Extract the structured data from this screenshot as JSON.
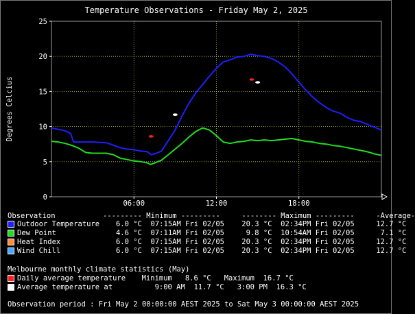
{
  "chart_data": {
    "type": "line",
    "title": "Temperature Observations - Friday May 2, 2025",
    "ylabel": "Degrees Celcius",
    "ylim": [
      0,
      25
    ],
    "yticks": [
      0,
      5,
      10,
      15,
      20,
      25
    ],
    "xlim_hours": [
      0,
      24
    ],
    "xticks": [
      {
        "hour": 6,
        "label": "06:00"
      },
      {
        "hour": 12,
        "label": "12:00"
      },
      {
        "hour": 18,
        "label": "18:00"
      }
    ],
    "grid": true,
    "series": [
      {
        "name": "Outdoor Temperature",
        "color": "#1f1fff",
        "points": [
          [
            0,
            9.8
          ],
          [
            0.5,
            9.6
          ],
          [
            1,
            9.4
          ],
          [
            1.4,
            9.0
          ],
          [
            1.6,
            7.8
          ],
          [
            2,
            7.8
          ],
          [
            3,
            7.8
          ],
          [
            4,
            7.7
          ],
          [
            5,
            7.0
          ],
          [
            5.5,
            6.8
          ],
          [
            6,
            6.7
          ],
          [
            6.5,
            6.5
          ],
          [
            7,
            6.4
          ],
          [
            7.25,
            6.0
          ],
          [
            7.5,
            6.1
          ],
          [
            8,
            6.5
          ],
          [
            8.5,
            8.0
          ],
          [
            9,
            9.5
          ],
          [
            9.5,
            11.5
          ],
          [
            10,
            13.3
          ],
          [
            10.5,
            14.8
          ],
          [
            11,
            16.0
          ],
          [
            11.5,
            17.2
          ],
          [
            12,
            18.3
          ],
          [
            12.5,
            19.2
          ],
          [
            13,
            19.5
          ],
          [
            13.5,
            19.9
          ],
          [
            14,
            20.0
          ],
          [
            14.5,
            20.3
          ],
          [
            15,
            20.1
          ],
          [
            15.5,
            20.0
          ],
          [
            16,
            19.7
          ],
          [
            16.5,
            19.2
          ],
          [
            17,
            18.5
          ],
          [
            17.5,
            17.5
          ],
          [
            18,
            16.3
          ],
          [
            18.5,
            15.2
          ],
          [
            19,
            14.2
          ],
          [
            19.5,
            13.4
          ],
          [
            20,
            12.7
          ],
          [
            20.5,
            12.2
          ],
          [
            21,
            11.9
          ],
          [
            21.5,
            11.3
          ],
          [
            22,
            10.9
          ],
          [
            22.5,
            10.7
          ],
          [
            23,
            10.3
          ],
          [
            23.5,
            9.9
          ],
          [
            24,
            9.5
          ]
        ]
      },
      {
        "name": "Dew Point",
        "color": "#22dd22",
        "points": [
          [
            0,
            7.9
          ],
          [
            0.5,
            7.8
          ],
          [
            1,
            7.6
          ],
          [
            1.5,
            7.3
          ],
          [
            2,
            6.9
          ],
          [
            2.5,
            6.3
          ],
          [
            3,
            6.2
          ],
          [
            4,
            6.2
          ],
          [
            4.5,
            6.0
          ],
          [
            5,
            5.5
          ],
          [
            5.5,
            5.3
          ],
          [
            6,
            5.1
          ],
          [
            6.5,
            5.0
          ],
          [
            7,
            4.8
          ],
          [
            7.2,
            4.6
          ],
          [
            7.5,
            4.8
          ],
          [
            8,
            5.2
          ],
          [
            8.5,
            6.0
          ],
          [
            9,
            6.8
          ],
          [
            9.5,
            7.6
          ],
          [
            10,
            8.5
          ],
          [
            10.5,
            9.3
          ],
          [
            11,
            9.8
          ],
          [
            11.5,
            9.5
          ],
          [
            12,
            8.7
          ],
          [
            12.5,
            7.8
          ],
          [
            13,
            7.6
          ],
          [
            13.5,
            7.8
          ],
          [
            14,
            7.9
          ],
          [
            14.5,
            8.1
          ],
          [
            15,
            8.0
          ],
          [
            15.5,
            8.1
          ],
          [
            16,
            8.0
          ],
          [
            16.5,
            8.1
          ],
          [
            17,
            8.2
          ],
          [
            17.5,
            8.3
          ],
          [
            18,
            8.1
          ],
          [
            18.5,
            7.9
          ],
          [
            19,
            7.8
          ],
          [
            19.5,
            7.6
          ],
          [
            20,
            7.5
          ],
          [
            20.5,
            7.3
          ],
          [
            21,
            7.2
          ],
          [
            21.5,
            7.0
          ],
          [
            22,
            6.8
          ],
          [
            22.5,
            6.6
          ],
          [
            23,
            6.4
          ],
          [
            23.5,
            6.1
          ],
          [
            24,
            5.9
          ]
        ]
      }
    ],
    "markers": [
      {
        "name": "Daily average temperature min",
        "hour": 7.25,
        "value": 8.6,
        "color": "#ff2020"
      },
      {
        "name": "Daily average temperature max",
        "hour": 14.57,
        "value": 16.7,
        "color": "#ff2020"
      },
      {
        "name": "Average temperature at 9am",
        "hour": 9.0,
        "value": 11.7,
        "color": "#ffffff"
      },
      {
        "name": "Average temperature at 3pm",
        "hour": 15.0,
        "value": 16.3,
        "color": "#ffffff"
      }
    ]
  },
  "summary": {
    "header": "Observation           --------- Minimum ---------     -------- Maximum ---------     -Average-",
    "rows": [
      {
        "label": "Outdoor Temperature",
        "color": "#1f1fff",
        "text": "   6.0 °C  07:15AM Fri 02/05    20.3 °C  02:34PM Fri 02/05     12.7 °C"
      },
      {
        "label": "Dew Point",
        "color": "#22dd22",
        "text": "   4.6 °C  07:11AM Fri 02/05     9.8 °C  10:54AM Fri 02/05      7.1 °C"
      },
      {
        "label": "Heat Index",
        "color": "#ff8c3a",
        "text": "   6.0 °C  07:15AM Fri 02/05    20.3 °C  02:34PM Fri 02/05     12.7 °C"
      },
      {
        "label": "Wind Chill",
        "color": "#4aa8ff",
        "text": "   6.0 °C  07:15AM Fri 02/05    20.3 °C  02:34PM Fri 02/05     12.7 °C"
      }
    ]
  },
  "climate": {
    "heading": "Melbourne monthly climate statistics (May)",
    "rows": [
      {
        "label": "Daily average temperature",
        "color": "#ff2020",
        "text": "     Minimum   8.6 °C   Maximum  16.7 °C"
      },
      {
        "label": "Average temperature at",
        "color": "#ffffff",
        "text": "        9:00 AM  11.7 °C   3:00 PM  16.3 °C"
      }
    ]
  },
  "footer": "Observation period : Fri May 2 00:00:00 AEST 2025 to Sat May 3 00:00:00 AEST 2025"
}
